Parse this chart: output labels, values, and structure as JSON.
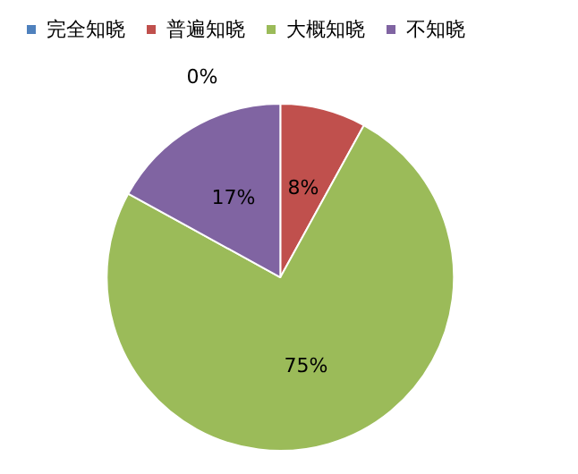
{
  "chart_data": {
    "type": "pie",
    "categories": [
      "完全知晓",
      "普遍知晓",
      "大概知晓",
      "不知晓"
    ],
    "values": [
      0,
      8,
      75,
      17
    ],
    "colors": [
      "#4f81bd",
      "#c0504d",
      "#9bbb59",
      "#8064a2"
    ],
    "value_labels": [
      "0%",
      "8%",
      "75%",
      "17%"
    ],
    "legend": "top left"
  }
}
